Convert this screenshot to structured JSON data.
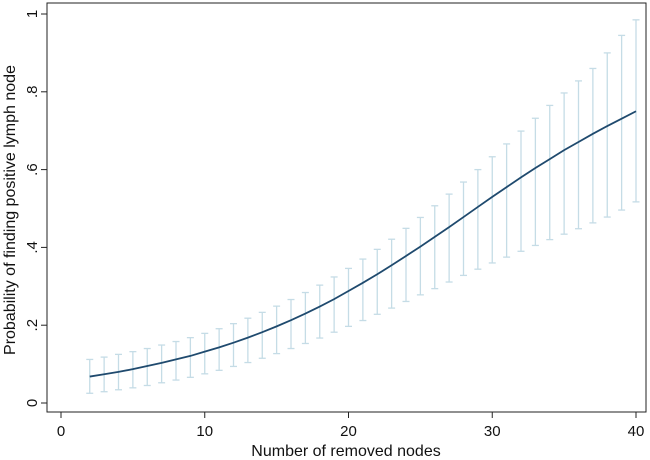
{
  "chart_data": {
    "type": "line",
    "title": "",
    "xlabel": "Number of removed nodes",
    "ylabel": "Probability of finding positive lymph node",
    "xlim": [
      0,
      41
    ],
    "ylim": [
      0,
      1
    ],
    "x_ticks": [
      0,
      10,
      20,
      30,
      40
    ],
    "x_tick_labels": [
      "0",
      "10",
      "20",
      "30",
      "40"
    ],
    "y_ticks": [
      0,
      0.2,
      0.4,
      0.6,
      0.8,
      1
    ],
    "y_tick_labels": [
      "0",
      ".2",
      ".4",
      ".6",
      ".8",
      "1"
    ],
    "grid": false,
    "legend": "none",
    "colors": {
      "line": "#1f4a6e",
      "error_bars": "#c5dce6"
    },
    "series": [
      {
        "x": [
          2,
          3,
          4,
          5,
          6,
          7,
          8,
          9,
          10,
          11,
          12,
          13,
          14,
          15,
          16,
          17,
          18,
          19,
          20,
          21,
          22,
          23,
          24,
          25,
          26,
          27,
          28,
          29,
          30,
          31,
          32,
          33,
          34,
          35,
          36,
          37,
          38,
          39,
          40
        ],
        "y": [
          0.068,
          0.074,
          0.08,
          0.087,
          0.095,
          0.103,
          0.112,
          0.121,
          0.132,
          0.143,
          0.155,
          0.168,
          0.182,
          0.197,
          0.213,
          0.23,
          0.248,
          0.267,
          0.288,
          0.309,
          0.331,
          0.354,
          0.378,
          0.402,
          0.427,
          0.452,
          0.478,
          0.504,
          0.53,
          0.555,
          0.58,
          0.604,
          0.627,
          0.65,
          0.671,
          0.692,
          0.712,
          0.731,
          0.75
        ],
        "lower": [
          0.025,
          0.029,
          0.034,
          0.039,
          0.045,
          0.052,
          0.059,
          0.066,
          0.075,
          0.084,
          0.094,
          0.104,
          0.115,
          0.127,
          0.14,
          0.153,
          0.167,
          0.182,
          0.197,
          0.212,
          0.228,
          0.244,
          0.261,
          0.278,
          0.294,
          0.311,
          0.328,
          0.344,
          0.36,
          0.375,
          0.39,
          0.405,
          0.42,
          0.434,
          0.448,
          0.463,
          0.478,
          0.496,
          0.517
        ],
        "upper": [
          0.112,
          0.118,
          0.125,
          0.132,
          0.14,
          0.149,
          0.158,
          0.168,
          0.179,
          0.191,
          0.204,
          0.218,
          0.233,
          0.249,
          0.266,
          0.284,
          0.303,
          0.324,
          0.346,
          0.37,
          0.395,
          0.421,
          0.449,
          0.477,
          0.507,
          0.537,
          0.568,
          0.6,
          0.633,
          0.666,
          0.699,
          0.732,
          0.765,
          0.797,
          0.828,
          0.86,
          0.9,
          0.945,
          0.985
        ]
      }
    ]
  }
}
